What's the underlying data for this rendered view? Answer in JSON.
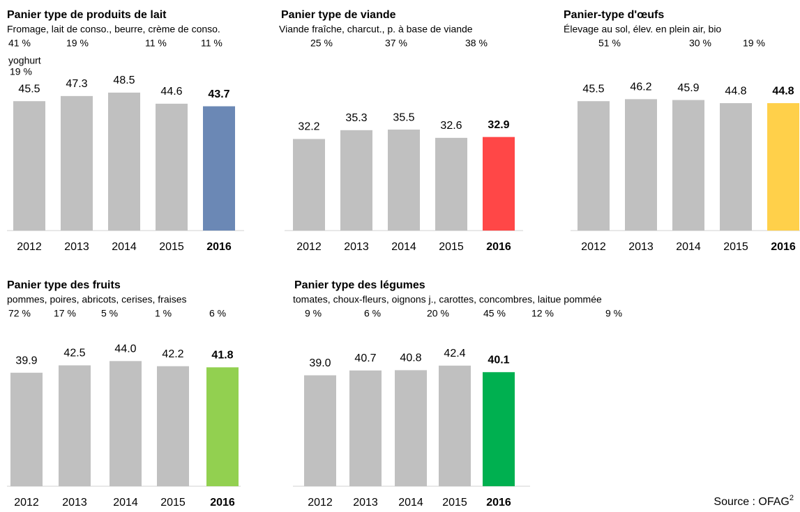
{
  "chart_data": [
    {
      "type": "bar",
      "title": "Panier type de produits de lait",
      "subtitle": "Fromage, lait de conso., beurre, crème de conso.",
      "shares": [
        "41 %",
        "19 %",
        "11 %",
        "11 %"
      ],
      "share_note": [
        "yoghurt",
        "19 %"
      ],
      "categories": [
        "2012",
        "2013",
        "2014",
        "2015",
        "2016"
      ],
      "values": [
        45.5,
        47.3,
        48.5,
        44.6,
        43.7
      ],
      "colors": [
        "#c0c0c0",
        "#c0c0c0",
        "#c0c0c0",
        "#c0c0c0",
        "#6b88b5"
      ],
      "ylim": [
        0,
        60
      ]
    },
    {
      "type": "bar",
      "title": "Panier type de viande",
      "subtitle": "Viande fraîche, charcut., p. à base de viande",
      "shares": [
        "25 %",
        "37 %",
        "38 %"
      ],
      "categories": [
        "2012",
        "2013",
        "2014",
        "2015",
        "2016"
      ],
      "values": [
        32.2,
        35.3,
        35.5,
        32.6,
        32.9
      ],
      "colors": [
        "#c0c0c0",
        "#c0c0c0",
        "#c0c0c0",
        "#c0c0c0",
        "#ff4747"
      ],
      "ylim": [
        0,
        60
      ]
    },
    {
      "type": "bar",
      "title": "Panier-type d'œufs",
      "subtitle": "Élevage au sol, élev. en plein air, bio",
      "shares": [
        "51 %",
        "30 %",
        "19 %"
      ],
      "categories": [
        "2012",
        "2013",
        "2014",
        "2015",
        "2016"
      ],
      "values": [
        45.5,
        46.2,
        45.9,
        44.8,
        44.8
      ],
      "colors": [
        "#c0c0c0",
        "#c0c0c0",
        "#c0c0c0",
        "#c0c0c0",
        "#ffd04a"
      ],
      "ylim": [
        0,
        60
      ]
    },
    {
      "type": "bar",
      "title": "Panier type des fruits",
      "subtitle": "pommes, poires, abricots, cerises, fraises",
      "shares": [
        "72 %",
        "17 %",
        "5 %",
        "1 %",
        "6 %"
      ],
      "categories": [
        "2012",
        "2013",
        "2014",
        "2015",
        "2016"
      ],
      "values": [
        39.9,
        42.5,
        44,
        42.2,
        41.8
      ],
      "value_labels": [
        "39.9",
        "42.5",
        "44.0",
        "42.2",
        "41.8"
      ],
      "colors": [
        "#c0c0c0",
        "#c0c0c0",
        "#c0c0c0",
        "#c0c0c0",
        "#92d050"
      ],
      "ylim": [
        0,
        60
      ]
    },
    {
      "type": "bar",
      "title": "Panier type des légumes",
      "subtitle": "tomates, choux-fleurs, oignons j., carottes, concombres, laitue pommée",
      "shares": [
        "9 %",
        "6 %",
        "20 %",
        "45 %",
        "12 %",
        "9 %"
      ],
      "categories": [
        "2012",
        "2013",
        "2014",
        "2015",
        "2016"
      ],
      "values": [
        39.0,
        40.7,
        40.8,
        42.4,
        40.1
      ],
      "value_labels": [
        "39.0",
        "40.7",
        "40.8",
        "42.4",
        "40.1"
      ],
      "colors": [
        "#c0c0c0",
        "#c0c0c0",
        "#c0c0c0",
        "#c0c0c0",
        "#00b050"
      ],
      "ylim": [
        0,
        60
      ]
    }
  ],
  "source": "Source : OFAG",
  "source_note": "2"
}
